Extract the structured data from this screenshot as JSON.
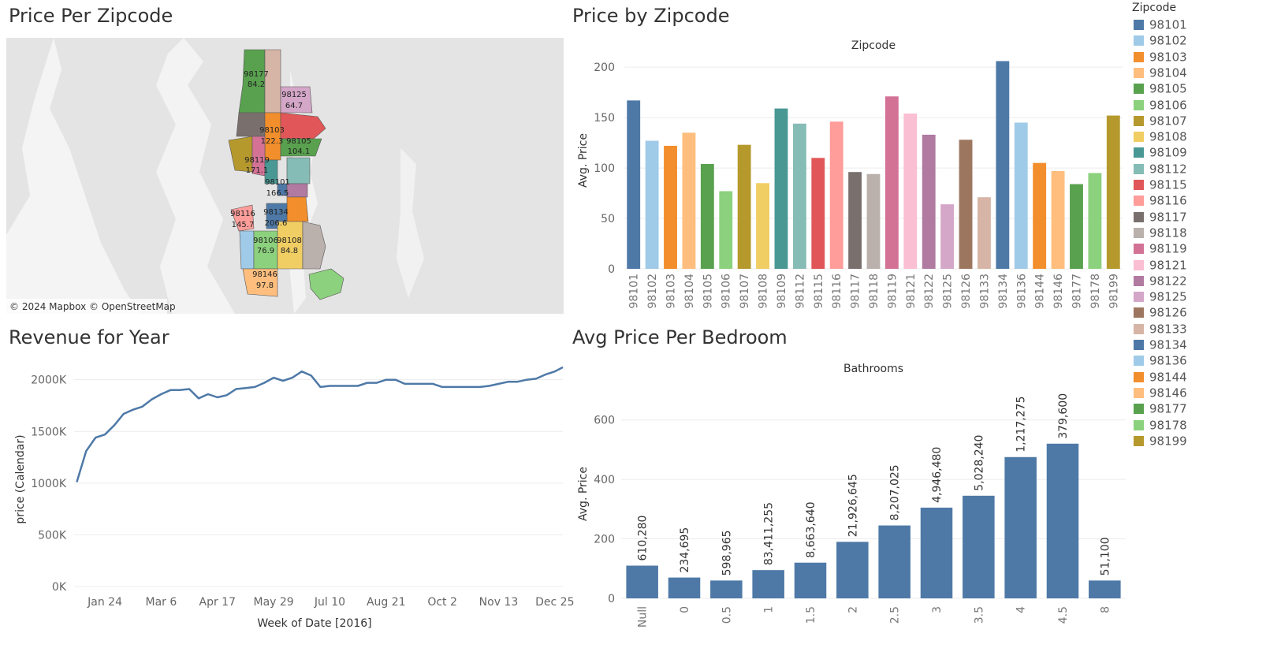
{
  "titles": {
    "map": "Price Per Zipcode",
    "bar_zip": "Price by Zipcode",
    "line": "Revenue for Year",
    "bar_bath": "Avg Price Per Bedroom"
  },
  "map": {
    "attribution": "© 2024 Mapbox © OpenStreetMap",
    "labels": [
      {
        "zip": "98177",
        "value": "84.2"
      },
      {
        "zip": "98125",
        "value": "64.7"
      },
      {
        "zip": "98103",
        "value": "122.3"
      },
      {
        "zip": "98105",
        "value": "104.1"
      },
      {
        "zip": "98119",
        "value": "171.1"
      },
      {
        "zip": "98101",
        "value": "166.5"
      },
      {
        "zip": "98116",
        "value": "145.7"
      },
      {
        "zip": "98134",
        "value": "206.6"
      },
      {
        "zip": "98106",
        "value": "76.9"
      },
      {
        "zip": "98108",
        "value": "84.8"
      },
      {
        "zip": "98146",
        "value": "97.8"
      }
    ]
  },
  "legend": {
    "title": "Zipcode",
    "items": [
      {
        "label": "98101",
        "color": "#4e79a7"
      },
      {
        "label": "98102",
        "color": "#a0cbe8"
      },
      {
        "label": "98103",
        "color": "#f28e2b"
      },
      {
        "label": "98104",
        "color": "#ffbe7d"
      },
      {
        "label": "98105",
        "color": "#59a14f"
      },
      {
        "label": "98106",
        "color": "#8cd17d"
      },
      {
        "label": "98107",
        "color": "#b6992d"
      },
      {
        "label": "98108",
        "color": "#f1ce63"
      },
      {
        "label": "98109",
        "color": "#499894"
      },
      {
        "label": "98112",
        "color": "#86bcb6"
      },
      {
        "label": "98115",
        "color": "#e15759"
      },
      {
        "label": "98116",
        "color": "#ff9d9a"
      },
      {
        "label": "98117",
        "color": "#79706e"
      },
      {
        "label": "98118",
        "color": "#bab0ac"
      },
      {
        "label": "98119",
        "color": "#d37295"
      },
      {
        "label": "98121",
        "color": "#fabfd2"
      },
      {
        "label": "98122",
        "color": "#b07aa1"
      },
      {
        "label": "98125",
        "color": "#d4a6c8"
      },
      {
        "label": "98126",
        "color": "#9d7660"
      },
      {
        "label": "98133",
        "color": "#d7b5a6"
      },
      {
        "label": "98134",
        "color": "#4e79a7"
      },
      {
        "label": "98136",
        "color": "#a0cbe8"
      },
      {
        "label": "98144",
        "color": "#f28e2b"
      },
      {
        "label": "98146",
        "color": "#ffbe7d"
      },
      {
        "label": "98177",
        "color": "#59a14f"
      },
      {
        "label": "98178",
        "color": "#8cd17d"
      },
      {
        "label": "98199",
        "color": "#b6992d"
      }
    ]
  },
  "chart_data": [
    {
      "type": "bar",
      "title": "Price by Zipcode",
      "header": "Zipcode",
      "ylabel": "Avg. Price",
      "ylim": [
        0,
        215
      ],
      "yticks": [
        0,
        50,
        100,
        150,
        200
      ],
      "categories": [
        "98101",
        "98102",
        "98103",
        "98104",
        "98105",
        "98106",
        "98107",
        "98108",
        "98109",
        "98112",
        "98115",
        "98116",
        "98117",
        "98118",
        "98119",
        "98121",
        "98122",
        "98125",
        "98126",
        "98133",
        "98134",
        "98136",
        "98144",
        "98146",
        "98177",
        "98178",
        "98199"
      ],
      "values": [
        167,
        127,
        122,
        135,
        104,
        77,
        123,
        85,
        159,
        144,
        110,
        146,
        96,
        94,
        171,
        154,
        133,
        64,
        128,
        71,
        206,
        145,
        105,
        97,
        84,
        95,
        152
      ],
      "colors": [
        "#4e79a7",
        "#a0cbe8",
        "#f28e2b",
        "#ffbe7d",
        "#59a14f",
        "#8cd17d",
        "#b6992d",
        "#f1ce63",
        "#499894",
        "#86bcb6",
        "#e15759",
        "#ff9d9a",
        "#79706e",
        "#bab0ac",
        "#d37295",
        "#fabfd2",
        "#b07aa1",
        "#d4a6c8",
        "#9d7660",
        "#d7b5a6",
        "#4e79a7",
        "#a0cbe8",
        "#f28e2b",
        "#ffbe7d",
        "#59a14f",
        "#8cd17d",
        "#b6992d"
      ],
      "grid": true
    },
    {
      "type": "line",
      "title": "Revenue for Year",
      "xlabel": "Week of Date [2016]",
      "ylabel": "price (Calendar)",
      "ylim": [
        0,
        2150000
      ],
      "yticks": [
        0,
        500000,
        1000000,
        1500000,
        2000000
      ],
      "ytick_labels": [
        "0K",
        "500K",
        "1000K",
        "1500K",
        "2000K"
      ],
      "xticks": [
        "2016-01-24",
        "2016-03-06",
        "2016-04-17",
        "2016-05-29",
        "2016-07-10",
        "2016-08-21",
        "2016-10-02",
        "2016-11-13",
        "2016-12-25"
      ],
      "xtick_labels": [
        "Jan 24",
        "Mar 6",
        "Apr 17",
        "May 29",
        "Jul 10",
        "Aug 21",
        "Oct 2",
        "Nov 13",
        "Dec 25"
      ],
      "xlim": [
        "2016-01-01",
        "2016-12-31"
      ],
      "x": [
        "2016-01-03",
        "2016-01-10",
        "2016-01-17",
        "2016-01-24",
        "2016-01-31",
        "2016-02-07",
        "2016-02-14",
        "2016-02-21",
        "2016-02-28",
        "2016-03-06",
        "2016-03-13",
        "2016-03-20",
        "2016-03-27",
        "2016-04-03",
        "2016-04-10",
        "2016-04-17",
        "2016-04-24",
        "2016-05-01",
        "2016-05-08",
        "2016-05-15",
        "2016-05-22",
        "2016-05-29",
        "2016-06-05",
        "2016-06-12",
        "2016-06-19",
        "2016-06-26",
        "2016-07-03",
        "2016-07-10",
        "2016-07-17",
        "2016-07-24",
        "2016-07-31",
        "2016-08-07",
        "2016-08-14",
        "2016-08-21",
        "2016-08-28",
        "2016-09-04",
        "2016-09-11",
        "2016-09-18",
        "2016-09-25",
        "2016-10-02",
        "2016-10-09",
        "2016-10-16",
        "2016-10-23",
        "2016-10-30",
        "2016-11-06",
        "2016-11-13",
        "2016-11-20",
        "2016-11-27",
        "2016-12-04",
        "2016-12-11",
        "2016-12-18",
        "2016-12-25",
        "2016-12-31"
      ],
      "values": [
        1010000,
        1310000,
        1440000,
        1470000,
        1560000,
        1670000,
        1710000,
        1740000,
        1810000,
        1860000,
        1900000,
        1900000,
        1910000,
        1820000,
        1860000,
        1830000,
        1850000,
        1910000,
        1920000,
        1930000,
        1970000,
        2020000,
        1990000,
        2020000,
        2080000,
        2040000,
        1930000,
        1940000,
        1940000,
        1940000,
        1940000,
        1970000,
        1970000,
        2000000,
        2000000,
        1960000,
        1960000,
        1960000,
        1960000,
        1930000,
        1930000,
        1930000,
        1930000,
        1930000,
        1940000,
        1960000,
        1980000,
        1980000,
        2000000,
        2010000,
        2050000,
        2080000,
        2120000
      ],
      "color": "#4e79a7",
      "grid": true
    },
    {
      "type": "bar",
      "title": "Avg Price Per Bedroom",
      "header": "Bathrooms",
      "ylabel": "Avg. Price",
      "ylim": [
        0,
        750
      ],
      "yticks": [
        0,
        200,
        400,
        600
      ],
      "categories": [
        "Null",
        "0",
        "0.5",
        "1",
        "1.5",
        "2",
        "2.5",
        "3",
        "3.5",
        "4",
        "4.5",
        "8"
      ],
      "values": [
        110,
        70,
        60,
        95,
        120,
        190,
        245,
        305,
        345,
        475,
        520,
        60
      ],
      "data_labels": [
        "610,280",
        "234,695",
        "598,965",
        "83,411,255",
        "8,663,640",
        "21,926,645",
        "8,207,025",
        "4,946,480",
        "5,028,240",
        "1,217,275",
        "379,600",
        "51,100"
      ],
      "color": "#4e79a7",
      "grid": true
    }
  ]
}
